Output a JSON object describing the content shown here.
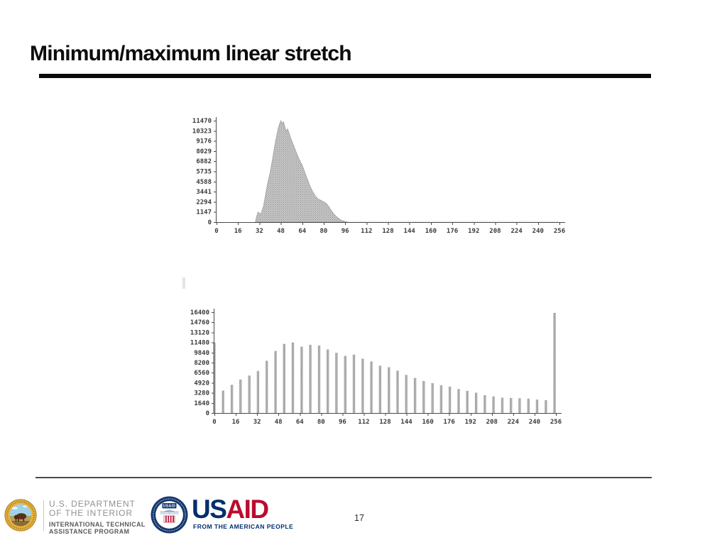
{
  "slide": {
    "title": "Minimum/maximum linear stretch",
    "page_number": "17"
  },
  "footer": {
    "doi": {
      "line1": "U.S. DEPARTMENT",
      "line2": "OF THE INTERIOR",
      "line3": "INTERNATIONAL TECHNICAL",
      "line4": "ASSISTANCE PROGRAM",
      "seal_icon": "doi-bison-seal"
    },
    "usaid": {
      "seal_text": "USAID",
      "wordmark_us": "US",
      "wordmark_aid": "AID",
      "tagline": "FROM THE AMERICAN PEOPLE",
      "colors": {
        "navy": "#002f6c",
        "red": "#ba0c2f"
      }
    }
  },
  "chart_data": [
    {
      "type": "area",
      "title": "",
      "xlabel": "",
      "ylabel": "",
      "xlim": [
        0,
        256
      ],
      "ylim": [
        0,
        11470
      ],
      "grid": false,
      "legend": null,
      "xticks": [
        0,
        16,
        32,
        48,
        64,
        80,
        96,
        112,
        128,
        144,
        160,
        176,
        192,
        208,
        224,
        240,
        256
      ],
      "yticks": [
        11470,
        10323,
        9176,
        8029,
        6882,
        5735,
        4588,
        3441,
        2294,
        1147,
        0
      ],
      "points": [
        [
          29,
          0
        ],
        [
          30,
          700
        ],
        [
          31,
          1150
        ],
        [
          32,
          1000
        ],
        [
          33,
          900
        ],
        [
          34,
          1300
        ],
        [
          35,
          1800
        ],
        [
          36,
          2600
        ],
        [
          38,
          4300
        ],
        [
          40,
          5600
        ],
        [
          42,
          7300
        ],
        [
          44,
          9100
        ],
        [
          46,
          10600
        ],
        [
          47,
          11100
        ],
        [
          48,
          11470
        ],
        [
          49,
          11150
        ],
        [
          50,
          11350
        ],
        [
          51,
          10800
        ],
        [
          52,
          10250
        ],
        [
          53,
          10550
        ],
        [
          54,
          10150
        ],
        [
          55,
          9650
        ],
        [
          56,
          9250
        ],
        [
          58,
          8500
        ],
        [
          60,
          7700
        ],
        [
          62,
          7000
        ],
        [
          64,
          6400
        ],
        [
          66,
          5600
        ],
        [
          68,
          4800
        ],
        [
          70,
          4000
        ],
        [
          72,
          3400
        ],
        [
          74,
          2900
        ],
        [
          76,
          2600
        ],
        [
          78,
          2450
        ],
        [
          80,
          2300
        ],
        [
          82,
          2100
        ],
        [
          84,
          1700
        ],
        [
          86,
          1250
        ],
        [
          88,
          850
        ],
        [
          90,
          550
        ],
        [
          92,
          320
        ],
        [
          94,
          160
        ],
        [
          96,
          60
        ],
        [
          98,
          0
        ]
      ],
      "residue_baseline_range": [
        98,
        256
      ]
    },
    {
      "type": "bar",
      "title": "",
      "xlabel": "",
      "ylabel": "",
      "xlim": [
        0,
        256
      ],
      "ylim": [
        0,
        16400
      ],
      "grid": false,
      "legend": null,
      "xticks": [
        0,
        16,
        32,
        48,
        64,
        80,
        96,
        112,
        128,
        144,
        160,
        176,
        192,
        208,
        224,
        240,
        256
      ],
      "yticks": [
        16400,
        14760,
        13120,
        11480,
        9840,
        8200,
        6560,
        4920,
        3280,
        1640,
        0
      ],
      "x": [
        0,
        6.5,
        13.1,
        19.6,
        26.2,
        32.7,
        39.2,
        45.8,
        52.3,
        58.8,
        65.4,
        71.9,
        78.5,
        85.0,
        91.5,
        98.1,
        104.6,
        111.2,
        117.7,
        124.2,
        130.8,
        137.3,
        143.8,
        150.4,
        156.9,
        163.5,
        170.0,
        176.5,
        183.1,
        189.6,
        196.2,
        202.7,
        209.2,
        215.8,
        222.3,
        228.8,
        235.4,
        241.9,
        248.5,
        255.0
      ],
      "values": [
        11480,
        3650,
        4600,
        5450,
        6100,
        6850,
        8500,
        10100,
        11250,
        11480,
        10800,
        11100,
        11000,
        10350,
        9800,
        9300,
        9500,
        8850,
        8400,
        7700,
        7450,
        6900,
        6200,
        5700,
        5200,
        4850,
        4500,
        4300,
        3900,
        3600,
        3300,
        2900,
        2700,
        2500,
        2450,
        2400,
        2350,
        2200,
        2100,
        16300
      ]
    }
  ]
}
